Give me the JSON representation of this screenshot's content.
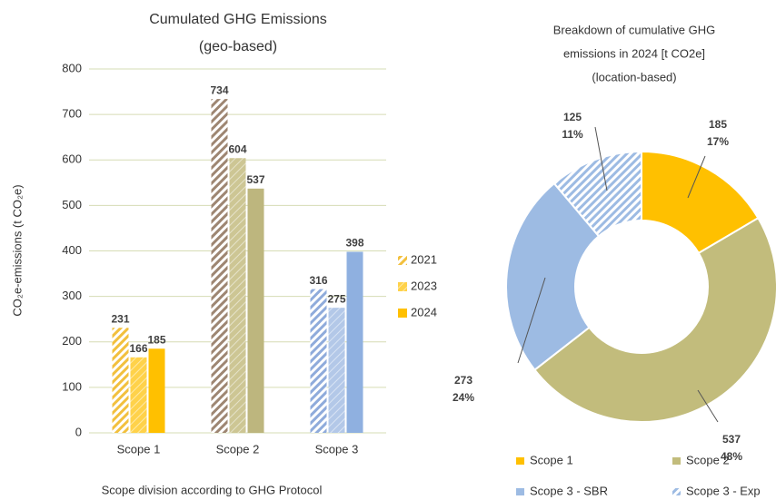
{
  "chart_data": [
    {
      "type": "bar",
      "title": "Cumulated GHG Emissions",
      "subtitle": "(geo-based)",
      "y_label": "CO₂e-emissions (t CO₂e)",
      "x_label": "Scope division according to GHG Protocol",
      "categories": [
        "Scope 1",
        "Scope 2",
        "Scope 3"
      ],
      "series": [
        {
          "name": "2021",
          "colors": [
            "#f2c03e",
            "#9e8672",
            "#8fabdb"
          ],
          "pattern": "hatch",
          "values": [
            231,
            734,
            316
          ]
        },
        {
          "name": "2023",
          "colors": [
            "#ffd24a",
            "#cdc694",
            "#b3c8e8"
          ],
          "pattern": "dots",
          "values": [
            166,
            604,
            275
          ]
        },
        {
          "name": "2024",
          "colors": [
            "#ffc000",
            "#bdb67e",
            "#8fb0e0"
          ],
          "pattern": "solid",
          "values": [
            185,
            537,
            398
          ]
        }
      ],
      "ylim": [
        0,
        800
      ],
      "yticks": [
        0,
        100,
        200,
        300,
        400,
        500,
        600,
        700,
        800
      ],
      "grid": true
    },
    {
      "type": "donut",
      "title": [
        "Breakdown of cumulative GHG",
        "emissions in 2024 [t CO2e]",
        "(location-based)"
      ],
      "categories": [
        "Scope 1",
        "Scope 2",
        "Scope 3 - SBR",
        "Scope 3 -  Exp"
      ],
      "values": [
        185,
        537,
        273,
        125
      ],
      "percent_labels": [
        "17%",
        "48%",
        "24%",
        "11%"
      ],
      "colors": [
        "#ffc000",
        "#c2bc7c",
        "#9dbbe3",
        "#9dbbe3"
      ],
      "patterns": [
        "solid",
        "solid",
        "solid",
        "hatch"
      ]
    }
  ]
}
